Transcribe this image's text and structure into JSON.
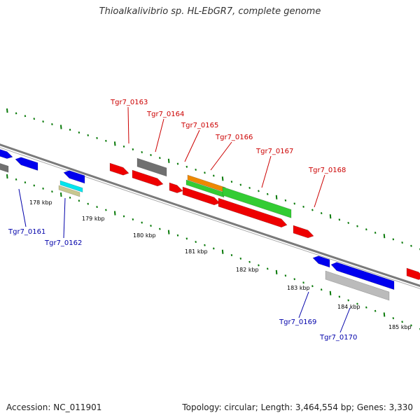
{
  "title": "Thioalkalivibrio sp. HL-EbGR7, complete genome",
  "footer": {
    "accession": "Accession: NC_011901",
    "summary": "Topology: circular; Length: 3,464,554 bp; Genes: 3,330"
  },
  "colors": {
    "forward_label": "#cc0000",
    "reverse_label": "#0000aa",
    "backbone": "#7a7a7a",
    "tick": "#0a7a0a",
    "red": "#ee0000",
    "blue": "#0000ee",
    "gray": "#707070",
    "light_gray": "#bbbbbb",
    "green": "#33cc33",
    "orange": "#ee8800",
    "cyan": "#00e5ee",
    "khaki": "#c8c890"
  },
  "scale": {
    "unit": "kbp",
    "labels": [
      "178 kbp",
      "179 kbp",
      "180 kbp",
      "181 kbp",
      "182 kbp",
      "183 kbp",
      "184 kbp",
      "185 kbp"
    ]
  },
  "labels": {
    "forward": [
      "Tgr7_0163",
      "Tgr7_0164",
      "Tgr7_0165",
      "Tgr7_0166",
      "Tgr7_0167",
      "Tgr7_0168"
    ],
    "reverse": [
      "Tgr7_0161",
      "Tgr7_0162",
      "Tgr7_0169",
      "Tgr7_0170"
    ]
  }
}
